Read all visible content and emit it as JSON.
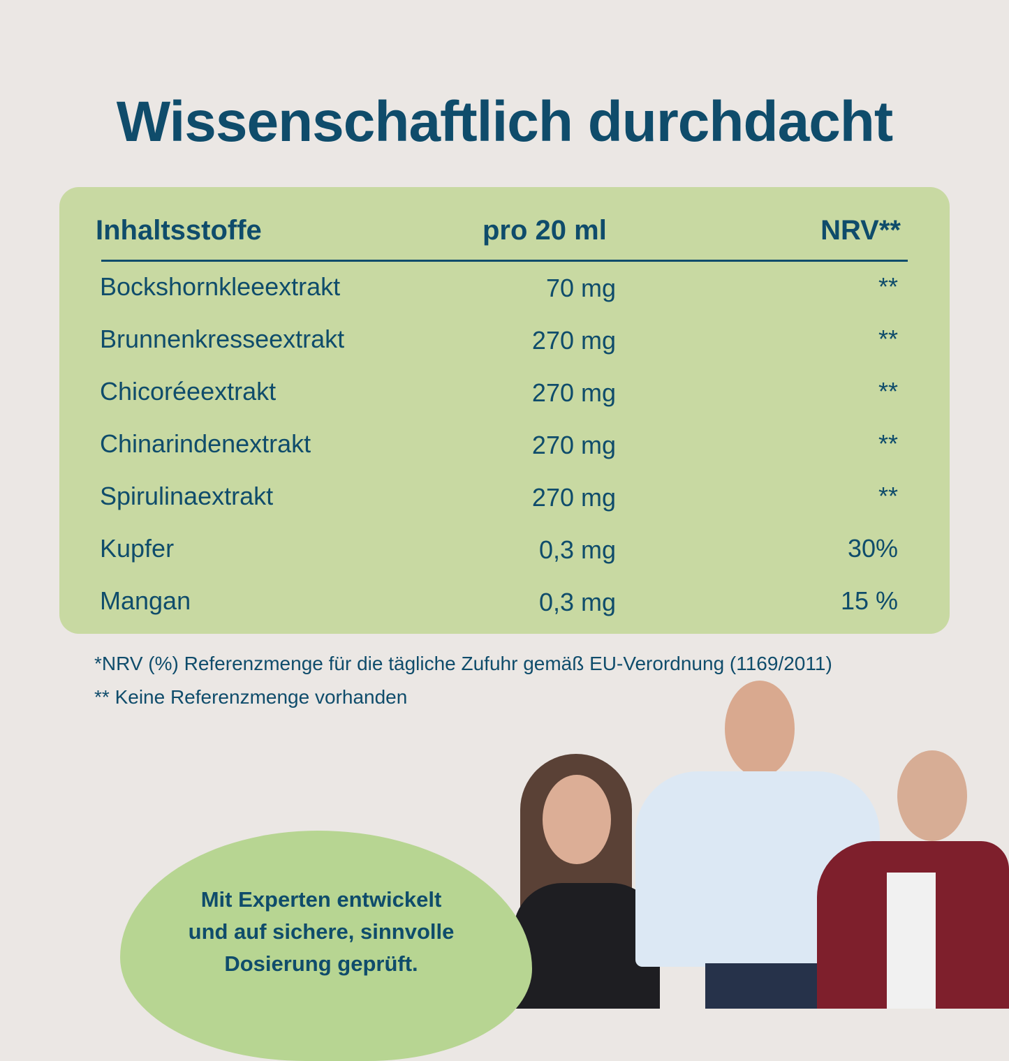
{
  "title": "Wissenschaftlich durchdacht",
  "table": {
    "headers": {
      "ingredient": "Inhaltsstoffe",
      "amount": "pro 20 ml",
      "nrv": "NRV**"
    },
    "rows": [
      {
        "name": "Bockshornkleeextrakt",
        "amount": "70 mg",
        "nrv": "**"
      },
      {
        "name": "Brunnenkresseextrakt",
        "amount": "270 mg",
        "nrv": "**"
      },
      {
        "name": "Chicoréeextrakt",
        "amount": "270 mg",
        "nrv": "**"
      },
      {
        "name": "Chinarindenextrakt",
        "amount": "270 mg",
        "nrv": "**"
      },
      {
        "name": "Spirulinaextrakt",
        "amount": "270 mg",
        "nrv": "**"
      },
      {
        "name": "Kupfer",
        "amount": "0,3 mg",
        "nrv": "30%"
      },
      {
        "name": "Mangan",
        "amount": "0,3 mg",
        "nrv": "15 %"
      }
    ]
  },
  "notes": [
    "*NRV (%) Referenzmenge für die tägliche Zufuhr gemäß EU-Verordnung (1169/2011)",
    "** Keine Referenzmenge vorhanden"
  ],
  "badge": {
    "line1": "Mit Experten entwickelt",
    "line2": "und auf sichere, sinnvolle",
    "line3": "Dosierung geprüft."
  },
  "colors": {
    "background": "#ebe7e4",
    "panel": "#c8d9a2",
    "text": "#0f4c6b",
    "badge": "#b7d592"
  }
}
